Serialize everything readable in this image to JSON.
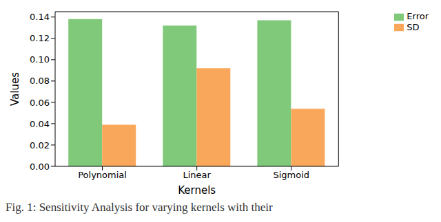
{
  "chart_data": {
    "type": "bar",
    "caption": "Fig. 1: Sensitivity Analysis for varying kernels with their",
    "x_label": "Kernels",
    "y_label": "Values",
    "categories": [
      "Polynomial",
      "Linear",
      "Sigmoid"
    ],
    "series": [
      {
        "name": "Error",
        "color": "#80c97a",
        "values": [
          0.138,
          0.132,
          0.137
        ]
      },
      {
        "name": "SD",
        "color": "#f9a85b",
        "values": [
          0.039,
          0.092,
          0.054
        ]
      }
    ],
    "ylim": [
      0,
      0.145
    ],
    "yticks": [
      {
        "value": 0,
        "label": "0.00"
      },
      {
        "value": 0.02,
        "label": "0.02"
      },
      {
        "value": 0.04,
        "label": "0.04"
      },
      {
        "value": 0.06,
        "label": "0.06"
      },
      {
        "value": 0.08,
        "label": "0.08"
      },
      {
        "value": 0.1,
        "label": "0.10"
      },
      {
        "value": 0.12,
        "label": "0.12"
      },
      {
        "value": 0.14,
        "label": "0.14"
      }
    ],
    "grid": false,
    "legend": "upper right"
  }
}
